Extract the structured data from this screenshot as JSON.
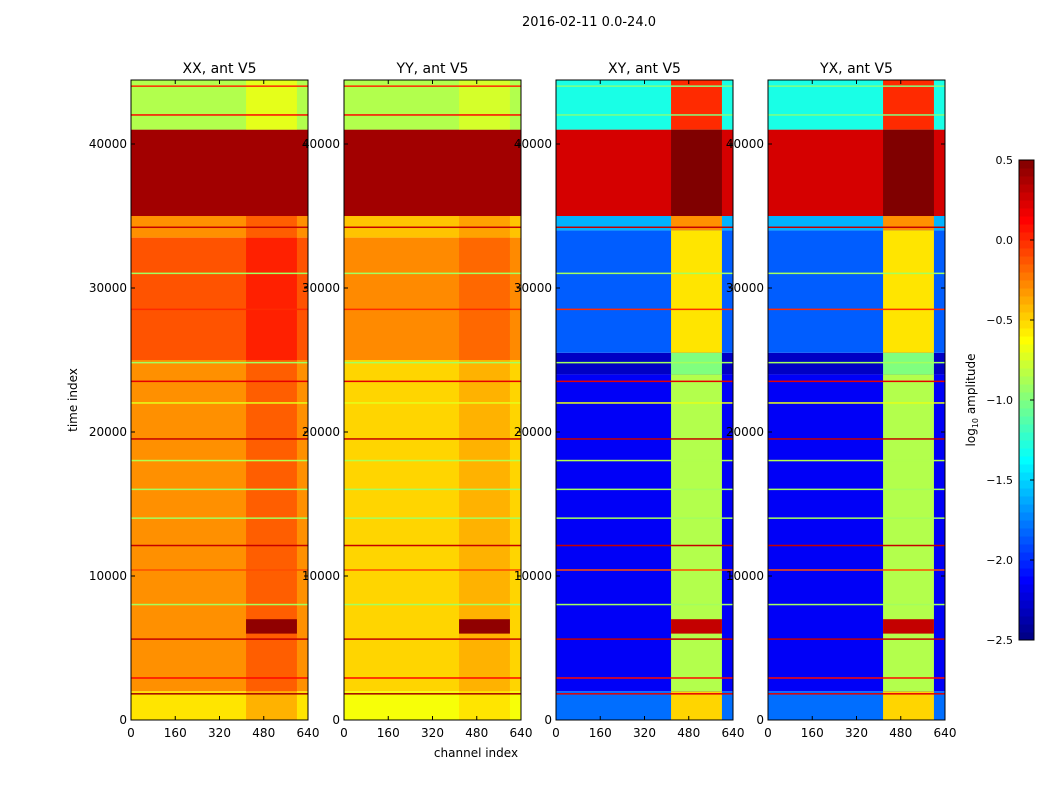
{
  "chart_data": {
    "type": "heatmap",
    "suptitle": "2016-02-11 0.0-24.0",
    "xlabel": "channel index",
    "ylabel": "time index",
    "xlim": [
      0,
      640
    ],
    "ylim": [
      0,
      44445
    ],
    "xticks": [
      "0",
      "160",
      "320",
      "480",
      "640"
    ],
    "xtick_values": [
      0,
      160,
      320,
      480,
      640
    ],
    "yticks": [
      "0",
      "10000",
      "20000",
      "30000",
      "40000"
    ],
    "ytick_values": [
      0,
      10000,
      20000,
      30000,
      40000
    ],
    "colorbar": {
      "label_main": "log",
      "label_sub": "10",
      "label_rest": " amplitude",
      "range": [
        -2.5,
        0.5
      ],
      "ticks": [
        "0.5",
        "0.0",
        "−0.5",
        "−1.0",
        "−1.5",
        "−2.0",
        "−2.5"
      ],
      "tick_values": [
        0.5,
        0.0,
        -0.5,
        -1.0,
        -1.5,
        -2.0,
        -2.5
      ],
      "colormap": "jet"
    },
    "panels": [
      {
        "title": "XX, ant V5",
        "bands": [
          [
            0,
            2000,
            -0.55
          ],
          [
            2000,
            25000,
            -0.3
          ],
          [
            25000,
            33500,
            -0.12
          ],
          [
            33500,
            35000,
            -0.3
          ],
          [
            35000,
            41000,
            0.4
          ],
          [
            41000,
            44445,
            -0.85
          ]
        ],
        "hot_columns": [
          [
            416,
            600,
            0.15
          ]
        ],
        "hot_patch": [
          [
            416,
            600,
            6000,
            7000,
            0.45
          ]
        ],
        "lines": [
          [
            1800,
            0.4
          ],
          [
            2900,
            0.1
          ],
          [
            5600,
            0.3
          ],
          [
            8000,
            -0.9
          ],
          [
            10400,
            -0.1
          ],
          [
            12100,
            0.3
          ],
          [
            14000,
            -0.9
          ],
          [
            16000,
            -0.9
          ],
          [
            18000,
            -0.85
          ],
          [
            19500,
            0.3
          ],
          [
            22000,
            -0.7
          ],
          [
            23500,
            0.2
          ],
          [
            24800,
            -0.9
          ],
          [
            28500,
            0.0
          ],
          [
            31000,
            -0.9
          ],
          [
            34200,
            0.3
          ],
          [
            42000,
            0.1
          ],
          [
            44000,
            0.0
          ]
        ]
      },
      {
        "title": "YY, ant V5",
        "bands": [
          [
            0,
            2000,
            -0.65
          ],
          [
            2000,
            25000,
            -0.5
          ],
          [
            25000,
            33500,
            -0.28
          ],
          [
            33500,
            35000,
            -0.45
          ],
          [
            35000,
            41000,
            0.4
          ],
          [
            41000,
            44445,
            -0.85
          ]
        ],
        "hot_columns": [
          [
            416,
            600,
            0.1
          ]
        ],
        "hot_patch": [
          [
            416,
            600,
            6000,
            7000,
            0.45
          ]
        ],
        "lines": [
          [
            1800,
            0.4
          ],
          [
            2900,
            0.1
          ],
          [
            5600,
            0.3
          ],
          [
            8000,
            -0.9
          ],
          [
            10400,
            -0.1
          ],
          [
            12100,
            0.3
          ],
          [
            14000,
            -0.9
          ],
          [
            16000,
            -0.9
          ],
          [
            18000,
            -0.85
          ],
          [
            19500,
            0.3
          ],
          [
            22000,
            -0.7
          ],
          [
            23500,
            0.2
          ],
          [
            24800,
            -0.9
          ],
          [
            28500,
            0.0
          ],
          [
            31000,
            -0.9
          ],
          [
            34200,
            0.3
          ],
          [
            42000,
            0.1
          ],
          [
            44000,
            0.0
          ]
        ]
      },
      {
        "title": "XY, ant V5",
        "bands": [
          [
            0,
            2000,
            -1.8
          ],
          [
            2000,
            24000,
            -2.15
          ],
          [
            24000,
            25500,
            -2.3
          ],
          [
            25500,
            34000,
            -1.85
          ],
          [
            34000,
            35000,
            -1.6
          ],
          [
            35000,
            41000,
            0.25
          ],
          [
            41000,
            44445,
            -1.3
          ]
        ],
        "hot_columns": [
          [
            416,
            600,
            1.3
          ]
        ],
        "hot_patch": [
          [
            416,
            600,
            6000,
            7000,
            1.9
          ]
        ],
        "lines": [
          [
            1800,
            0.2
          ],
          [
            2900,
            0.1
          ],
          [
            5600,
            0.3
          ],
          [
            8000,
            -0.9
          ],
          [
            10400,
            -0.1
          ],
          [
            12100,
            0.3
          ],
          [
            14000,
            -0.9
          ],
          [
            16000,
            -0.9
          ],
          [
            18000,
            -0.85
          ],
          [
            19500,
            0.3
          ],
          [
            22000,
            -0.7
          ],
          [
            23500,
            0.2
          ],
          [
            24800,
            -0.9
          ],
          [
            28500,
            0.0
          ],
          [
            31000,
            -0.9
          ],
          [
            34200,
            0.3
          ],
          [
            42000,
            -1.0
          ],
          [
            44000,
            -1.0
          ]
        ]
      },
      {
        "title": "YX, ant V5",
        "bands": [
          [
            0,
            2000,
            -1.8
          ],
          [
            2000,
            24000,
            -2.15
          ],
          [
            24000,
            25500,
            -2.3
          ],
          [
            25500,
            34000,
            -1.85
          ],
          [
            34000,
            35000,
            -1.6
          ],
          [
            35000,
            41000,
            0.25
          ],
          [
            41000,
            44445,
            -1.3
          ]
        ],
        "hot_columns": [
          [
            416,
            600,
            1.3
          ]
        ],
        "hot_patch": [
          [
            416,
            600,
            6000,
            7000,
            1.9
          ]
        ],
        "lines": [
          [
            1800,
            0.2
          ],
          [
            2900,
            0.1
          ],
          [
            5600,
            0.3
          ],
          [
            8000,
            -0.9
          ],
          [
            10400,
            -0.1
          ],
          [
            12100,
            0.3
          ],
          [
            14000,
            -0.9
          ],
          [
            16000,
            -0.9
          ],
          [
            18000,
            -0.85
          ],
          [
            19500,
            0.3
          ],
          [
            22000,
            -0.7
          ],
          [
            23500,
            0.2
          ],
          [
            24800,
            -0.9
          ],
          [
            28500,
            0.0
          ],
          [
            31000,
            -0.9
          ],
          [
            34200,
            0.3
          ],
          [
            42000,
            -1.0
          ],
          [
            44000,
            -1.0
          ]
        ]
      }
    ]
  }
}
